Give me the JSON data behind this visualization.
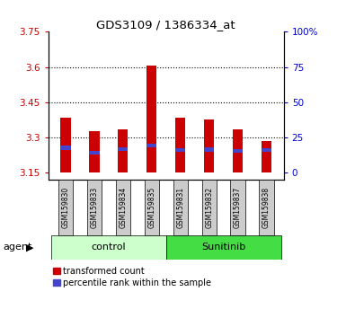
{
  "title": "GDS3109 / 1386334_at",
  "samples": [
    "GSM159830",
    "GSM159833",
    "GSM159834",
    "GSM159835",
    "GSM159831",
    "GSM159832",
    "GSM159837",
    "GSM159838"
  ],
  "red_values": [
    3.385,
    3.325,
    3.335,
    3.605,
    3.385,
    3.375,
    3.335,
    3.285
  ],
  "blue_bottoms": [
    3.248,
    3.228,
    3.243,
    3.258,
    3.238,
    3.24,
    3.233,
    3.24
  ],
  "blue_heights": [
    0.016,
    0.013,
    0.013,
    0.016,
    0.016,
    0.016,
    0.016,
    0.013
  ],
  "bar_bottom": 3.15,
  "ylim_min": 3.12,
  "ylim_max": 3.75,
  "yticks": [
    3.15,
    3.3,
    3.45,
    3.6,
    3.75
  ],
  "ytick_labels": [
    "3.15",
    "3.3",
    "3.45",
    "3.6",
    "3.75"
  ],
  "right_y_positions": [
    3.15,
    3.3,
    3.45,
    3.6,
    3.75
  ],
  "right_labels": [
    "0",
    "25",
    "50",
    "75",
    "100%"
  ],
  "groups": [
    {
      "label": "control",
      "start": 0,
      "end": 4,
      "color": "#ccffcc"
    },
    {
      "label": "Sunitinib",
      "start": 4,
      "end": 8,
      "color": "#44dd44"
    }
  ],
  "red_color": "#cc0000",
  "blue_color": "#4444cc",
  "bar_width": 0.35,
  "legend_red": "transformed count",
  "legend_blue": "percentile rank within the sample",
  "tick_color_left": "#cc0000",
  "tick_color_right": "#0000cc",
  "sample_box_color": "#cccccc",
  "grid_lines": [
    3.3,
    3.45,
    3.6
  ]
}
